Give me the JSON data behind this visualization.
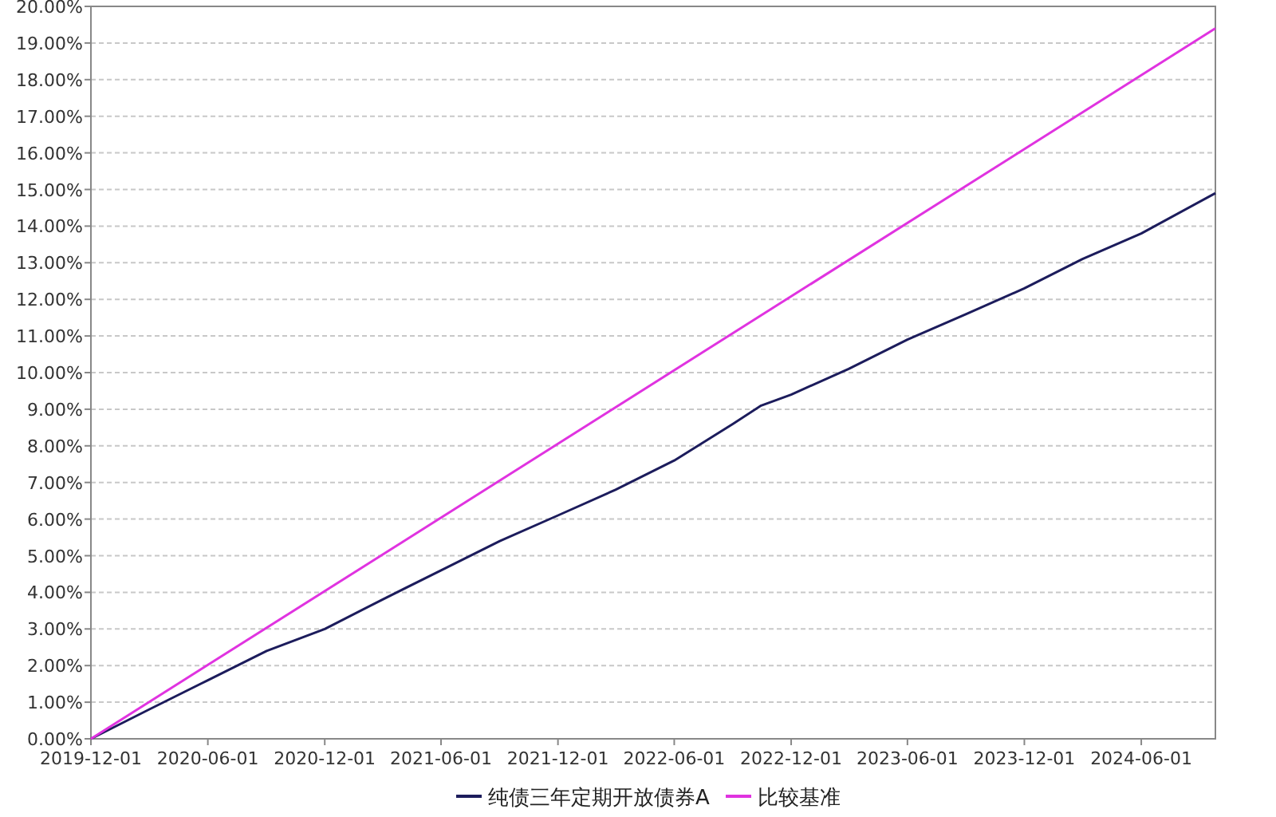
{
  "chart_data": {
    "type": "line",
    "xlim": [
      "2019-12-01",
      "2024-09-25"
    ],
    "xticks": [
      "2019-12-01",
      "2020-06-01",
      "2020-12-01",
      "2021-06-01",
      "2021-12-01",
      "2022-06-01",
      "2022-12-01",
      "2023-06-01",
      "2023-12-01",
      "2024-06-01"
    ],
    "ylim": [
      0,
      20
    ],
    "yticks": [
      {
        "value": 0,
        "label": "0.00%"
      },
      {
        "value": 1,
        "label": "1.00%"
      },
      {
        "value": 2,
        "label": "2.00%"
      },
      {
        "value": 3,
        "label": "3.00%"
      },
      {
        "value": 4,
        "label": "4.00%"
      },
      {
        "value": 5,
        "label": "5.00%"
      },
      {
        "value": 6,
        "label": "6.00%"
      },
      {
        "value": 7,
        "label": "7.00%"
      },
      {
        "value": 8,
        "label": "8.00%"
      },
      {
        "value": 9,
        "label": "9.00%"
      },
      {
        "value": 10,
        "label": "10.00%"
      },
      {
        "value": 11,
        "label": "11.00%"
      },
      {
        "value": 12,
        "label": "12.00%"
      },
      {
        "value": 13,
        "label": "13.00%"
      },
      {
        "value": 14,
        "label": "14.00%"
      },
      {
        "value": 15,
        "label": "15.00%"
      },
      {
        "value": 16,
        "label": "16.00%"
      },
      {
        "value": 17,
        "label": "17.00%"
      },
      {
        "value": 18,
        "label": "18.00%"
      },
      {
        "value": 19,
        "label": "19.00%"
      },
      {
        "value": 20,
        "label": "20.00%"
      }
    ],
    "grid": "y",
    "legend": "bottom",
    "marker": "none",
    "line_style": "solid",
    "series": [
      {
        "name": "纯债三年定期开放债券A",
        "color": "#1c1c5c",
        "x": [
          "2019-12-01",
          "2020-03-01",
          "2020-06-01",
          "2020-09-01",
          "2020-12-01",
          "2021-03-01",
          "2021-06-01",
          "2021-09-01",
          "2021-12-01",
          "2022-03-01",
          "2022-06-01",
          "2022-09-01",
          "2022-10-15",
          "2022-12-01",
          "2023-03-01",
          "2023-06-01",
          "2023-09-01",
          "2023-12-01",
          "2024-03-01",
          "2024-06-01",
          "2024-09-25"
        ],
        "values": [
          0,
          0.8,
          1.6,
          2.4,
          3.0,
          3.8,
          4.6,
          5.4,
          6.1,
          6.8,
          7.6,
          8.6,
          9.1,
          9.4,
          10.1,
          10.9,
          11.6,
          12.3,
          13.1,
          13.8,
          14.9
        ]
      },
      {
        "name": "比较基准",
        "color": "#e033e0",
        "x": [
          "2019-12-01",
          "2024-09-25"
        ],
        "values": [
          0,
          19.4
        ]
      }
    ]
  }
}
